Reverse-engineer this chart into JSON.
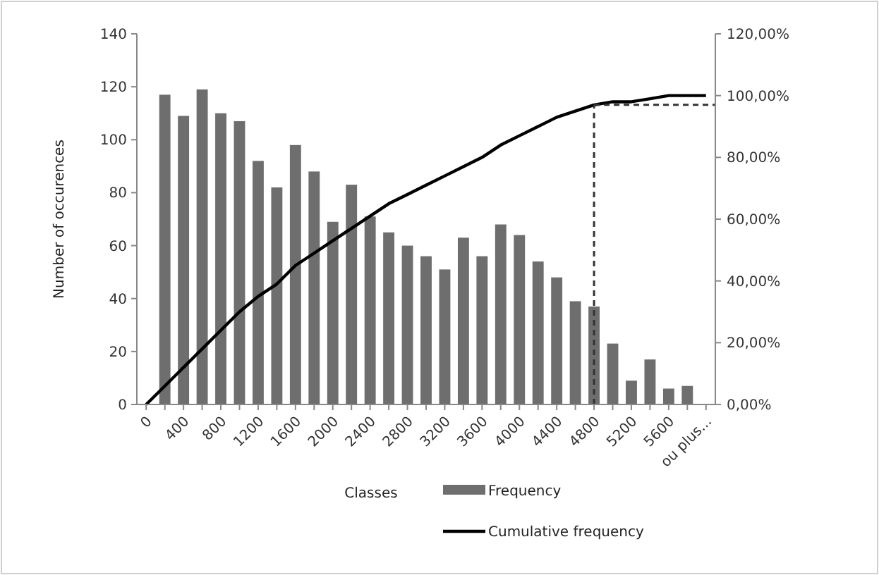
{
  "chart_data": {
    "type": "bar",
    "xlabel": "Classes",
    "ylabel": "Number of occurences",
    "categories": [
      "0",
      null,
      "400",
      null,
      "800",
      null,
      "1200",
      null,
      "1600",
      null,
      "2000",
      null,
      "2400",
      null,
      "2800",
      null,
      "3200",
      null,
      "3600",
      null,
      "4000",
      null,
      "4400",
      null,
      "4800",
      null,
      "5200",
      null,
      "5600",
      null,
      "ou plus..."
    ],
    "series": [
      {
        "name": "Frequency",
        "type": "bar",
        "color": "#6e6e6e",
        "values": [
          0,
          117,
          109,
          119,
          110,
          107,
          92,
          82,
          98,
          88,
          69,
          83,
          71,
          65,
          60,
          56,
          51,
          63,
          56,
          68,
          64,
          54,
          48,
          39,
          37,
          23,
          9,
          17,
          6,
          7,
          0
        ]
      },
      {
        "name": "Cumulative frequency",
        "type": "line",
        "axis": "y2",
        "color": "#000000",
        "values": [
          0,
          6,
          12,
          18,
          24,
          30,
          35,
          39,
          45,
          49,
          53,
          57,
          61,
          65,
          68,
          71,
          74,
          77,
          80,
          84,
          87,
          90,
          93,
          95,
          97,
          98,
          98,
          99,
          100,
          100,
          100
        ]
      }
    ],
    "ylim": [
      0,
      140
    ],
    "yticks": [
      0,
      20,
      40,
      60,
      80,
      100,
      120,
      140
    ],
    "y2lim": [
      0,
      120
    ],
    "y2ticks": [
      {
        "value": 0,
        "label": "0,00%"
      },
      {
        "value": 20,
        "label": "20,00%"
      },
      {
        "value": 40,
        "label": "40,00%"
      },
      {
        "value": 60,
        "label": "60,00%"
      },
      {
        "value": 80,
        "label": "80,00%"
      },
      {
        "value": 100,
        "label": "100,00%"
      },
      {
        "value": 120,
        "label": "120,00%"
      }
    ],
    "ref_lines": [
      {
        "axis": "x",
        "value": "4800",
        "color": "#333333",
        "line_style": "dashed"
      },
      {
        "axis": "y2",
        "value": 97,
        "color": "#333333",
        "line_style": "dashed"
      }
    ],
    "legend": "bottom",
    "grid": false
  }
}
